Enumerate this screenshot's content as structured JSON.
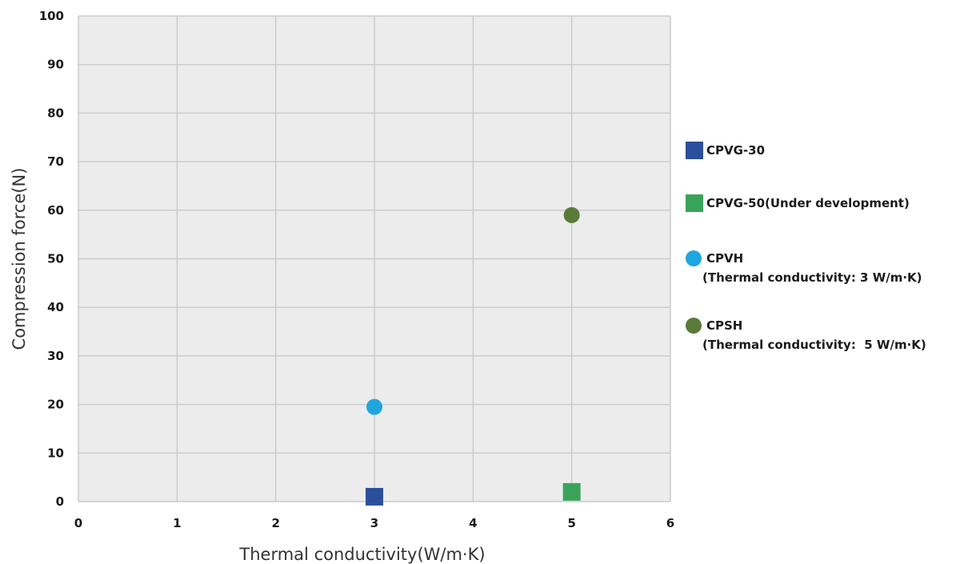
{
  "chart_data": {
    "type": "scatter",
    "xlabel": "Thermal conductivity(W/m·K)",
    "ylabel": "Compression force(N)",
    "xlim": [
      0,
      6
    ],
    "ylim": [
      0,
      100
    ],
    "x_ticks": [
      "0",
      "1",
      "2",
      "3",
      "4",
      "5",
      "6"
    ],
    "y_ticks": [
      "0",
      "10",
      "20",
      "30",
      "40",
      "50",
      "60",
      "70",
      "80",
      "90",
      "100"
    ],
    "grid": true,
    "legend_position": "right",
    "series": [
      {
        "name": "CPVG-30",
        "sublabel": "",
        "marker": "square",
        "color": "#2b4f9a",
        "points": [
          {
            "x": 3,
            "y": 1
          }
        ]
      },
      {
        "name": "CPVG-50(Under development)",
        "sublabel": "",
        "marker": "square",
        "color": "#3aa35a",
        "points": [
          {
            "x": 5,
            "y": 2
          }
        ]
      },
      {
        "name": "CPVH",
        "sublabel": "(Thermal conductivity: 3 W/m·K)",
        "marker": "circle",
        "color": "#1fa6de",
        "points": [
          {
            "x": 3,
            "y": 19.5
          }
        ]
      },
      {
        "name": "CPSH",
        "sublabel": "(Thermal conductivity:  5 W/m·K)",
        "marker": "circle",
        "color": "#5a7a3a",
        "points": [
          {
            "x": 5,
            "y": 59
          }
        ]
      }
    ],
    "colors": {
      "plot_background": "#ececec",
      "grid": "#cccccc"
    }
  }
}
